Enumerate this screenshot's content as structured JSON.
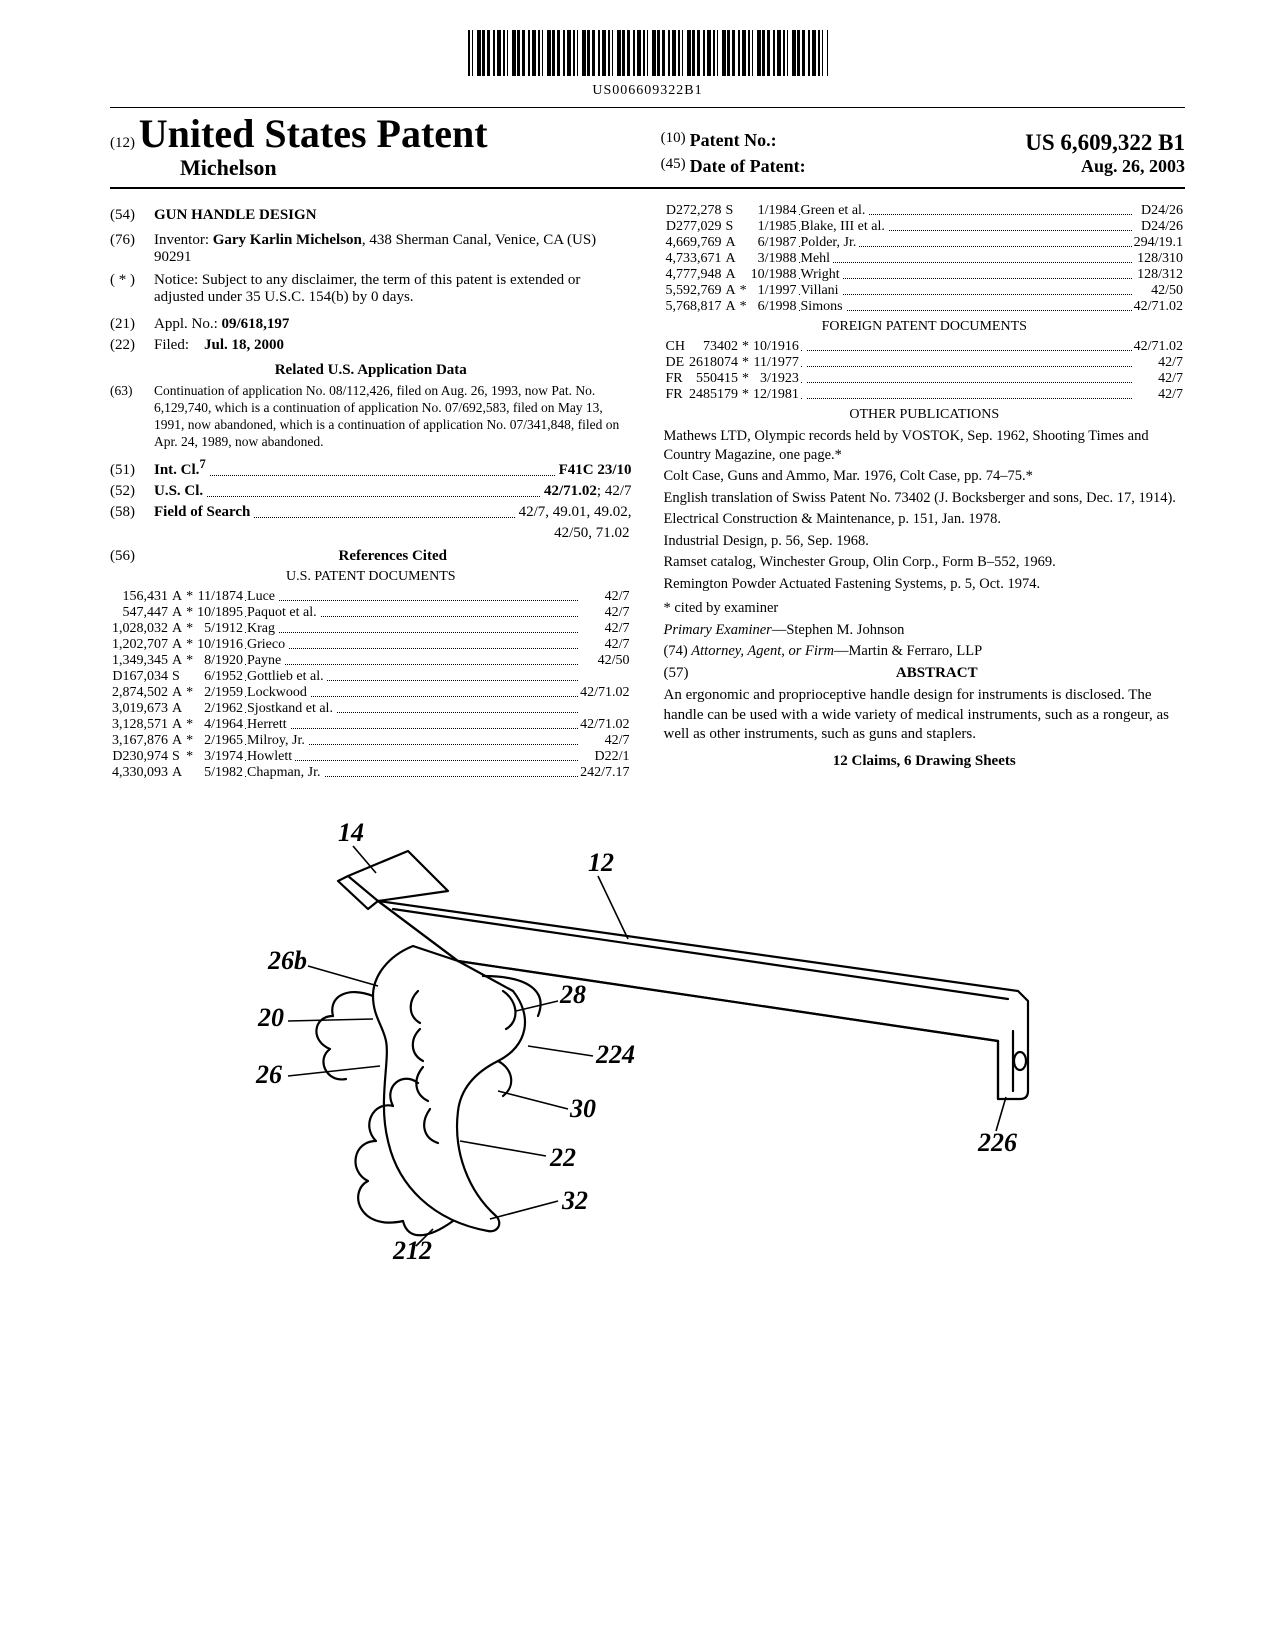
{
  "barcode_number": "US006609322B1",
  "header": {
    "left_prefix": "(12)",
    "left_title": "United States Patent",
    "inventor_surname": "Michelson",
    "right": [
      {
        "tag": "(10)",
        "label": "Patent No.:",
        "value": "US 6,609,322 B1"
      },
      {
        "tag": "(45)",
        "label": "Date of Patent:",
        "value": "Aug. 26, 2003"
      }
    ]
  },
  "left_col": {
    "title": {
      "tag": "(54)",
      "text": "GUN HANDLE DESIGN"
    },
    "inventor": {
      "tag": "(76)",
      "label": "Inventor:",
      "text": "Gary Karlin Michelson, 438 Sherman Canal, Venice, CA (US) 90291"
    },
    "notice": {
      "tag": "( * )",
      "label": "Notice:",
      "text": "Subject to any disclaimer, the term of this patent is extended or adjusted under 35 U.S.C. 154(b) by 0 days."
    },
    "appl": {
      "tag": "(21)",
      "label": "Appl. No.:",
      "value": "09/618,197"
    },
    "filed": {
      "tag": "(22)",
      "label": "Filed:",
      "value": "Jul. 18, 2000"
    },
    "related_hd": "Related U.S. Application Data",
    "related": {
      "tag": "(63)",
      "text": "Continuation of application No. 08/112,426, filed on Aug. 26, 1993, now Pat. No. 6,129,740, which is a continuation of application No. 07/692,583, filed on May 13, 1991, now abandoned, which is a continuation of application No. 07/341,848, filed on Apr. 24, 1989, now abandoned."
    },
    "intcl": {
      "tag": "(51)",
      "label": "Int. Cl.",
      "sup": "7",
      "value": "F41C 23/10"
    },
    "uscl": {
      "tag": "(52)",
      "label": "U.S. Cl.",
      "value": "42/71.02; 42/7"
    },
    "search": {
      "tag": "(58)",
      "label": "Field of Search",
      "value": "42/7, 49.01, 49.02, 42/50, 71.02"
    },
    "ref_hd_tag": "(56)",
    "ref_hd": "References Cited",
    "us_hd": "U.S. PATENT DOCUMENTS",
    "us_refs": [
      {
        "n": "156,431",
        "k": "A",
        "s": "*",
        "d": "11/1874",
        "a": "Luce",
        "c": "42/7"
      },
      {
        "n": "547,447",
        "k": "A",
        "s": "*",
        "d": "10/1895",
        "a": "Paquot et al.",
        "c": "42/7"
      },
      {
        "n": "1,028,032",
        "k": "A",
        "s": "*",
        "d": "5/1912",
        "a": "Krag",
        "c": "42/7"
      },
      {
        "n": "1,202,707",
        "k": "A",
        "s": "*",
        "d": "10/1916",
        "a": "Grieco",
        "c": "42/7"
      },
      {
        "n": "1,349,345",
        "k": "A",
        "s": "*",
        "d": "8/1920",
        "a": "Payne",
        "c": "42/50"
      },
      {
        "n": "D167,034",
        "k": "S",
        "s": "",
        "d": "6/1952",
        "a": "Gottlieb et al.",
        "c": ""
      },
      {
        "n": "2,874,502",
        "k": "A",
        "s": "*",
        "d": "2/1959",
        "a": "Lockwood",
        "c": "42/71.02"
      },
      {
        "n": "3,019,673",
        "k": "A",
        "s": "",
        "d": "2/1962",
        "a": "Sjostkand et al.",
        "c": ""
      },
      {
        "n": "3,128,571",
        "k": "A",
        "s": "*",
        "d": "4/1964",
        "a": "Herrett",
        "c": "42/71.02"
      },
      {
        "n": "3,167,876",
        "k": "A",
        "s": "*",
        "d": "2/1965",
        "a": "Milroy, Jr.",
        "c": "42/7"
      },
      {
        "n": "D230,974",
        "k": "S",
        "s": "*",
        "d": "3/1974",
        "a": "Howlett",
        "c": "D22/1"
      },
      {
        "n": "4,330,093",
        "k": "A",
        "s": "",
        "d": "5/1982",
        "a": "Chapman, Jr.",
        "c": "242/7.17"
      }
    ]
  },
  "right_col": {
    "us_refs2": [
      {
        "n": "D272,278",
        "k": "S",
        "s": "",
        "d": "1/1984",
        "a": "Green et al.",
        "c": "D24/26"
      },
      {
        "n": "D277,029",
        "k": "S",
        "s": "",
        "d": "1/1985",
        "a": "Blake, III et al.",
        "c": "D24/26"
      },
      {
        "n": "4,669,769",
        "k": "A",
        "s": "",
        "d": "6/1987",
        "a": "Polder, Jr.",
        "c": "294/19.1"
      },
      {
        "n": "4,733,671",
        "k": "A",
        "s": "",
        "d": "3/1988",
        "a": "Mehl",
        "c": "128/310"
      },
      {
        "n": "4,777,948",
        "k": "A",
        "s": "",
        "d": "10/1988",
        "a": "Wright",
        "c": "128/312"
      },
      {
        "n": "5,592,769",
        "k": "A",
        "s": "*",
        "d": "1/1997",
        "a": "Villani",
        "c": "42/50"
      },
      {
        "n": "5,768,817",
        "k": "A",
        "s": "*",
        "d": "6/1998",
        "a": "Simons",
        "c": "42/71.02"
      }
    ],
    "foreign_hd": "FOREIGN PATENT DOCUMENTS",
    "foreign": [
      {
        "cc": "CH",
        "n": "73402",
        "s": "*",
        "d": "10/1916",
        "c": "42/71.02"
      },
      {
        "cc": "DE",
        "n": "2618074",
        "s": "*",
        "d": "11/1977",
        "c": "42/7"
      },
      {
        "cc": "FR",
        "n": "550415",
        "s": "*",
        "d": "3/1923",
        "c": "42/7"
      },
      {
        "cc": "FR",
        "n": "2485179",
        "s": "*",
        "d": "12/1981",
        "c": "42/7"
      }
    ],
    "other_hd": "OTHER PUBLICATIONS",
    "other": [
      "Mathews LTD, Olympic records held by VOSTOK, Sep. 1962, Shooting Times and Country Magazine, one page.*",
      "Colt Case, Guns and Ammo, Mar. 1976, Colt Case, pp. 74–75.*",
      "English translation of Swiss Patent No. 73402 (J. Bocksberger and sons, Dec. 17, 1914).",
      "Electrical Construction & Maintenance, p. 151, Jan. 1978.",
      "Industrial Design, p. 56, Sep. 1968.",
      "Ramset catalog, Winchester Group, Olin Corp., Form B–552, 1969.",
      "Remington Powder Actuated Fastening Systems, p. 5, Oct. 1974."
    ],
    "cited_note": "* cited by examiner",
    "examiner_lbl": "Primary Examiner",
    "examiner": "—Stephen M. Johnson",
    "attorney_lbl": "(74) Attorney, Agent, or Firm",
    "attorney": "—Martin & Ferraro, LLP",
    "abstract_tag": "(57)",
    "abstract_hd": "ABSTRACT",
    "abstract": "An ergonomic and proprioceptive handle design for instruments is disclosed. The handle can be used with a wide variety of medical instruments, such as a rongeur, as well as other instruments, such as guns and staplers.",
    "claims_line": "12 Claims, 6 Drawing Sheets"
  },
  "figure_labels": [
    "14",
    "12",
    "26b",
    "20",
    "26",
    "28",
    "224",
    "30",
    "22",
    "32",
    "212",
    "226"
  ]
}
